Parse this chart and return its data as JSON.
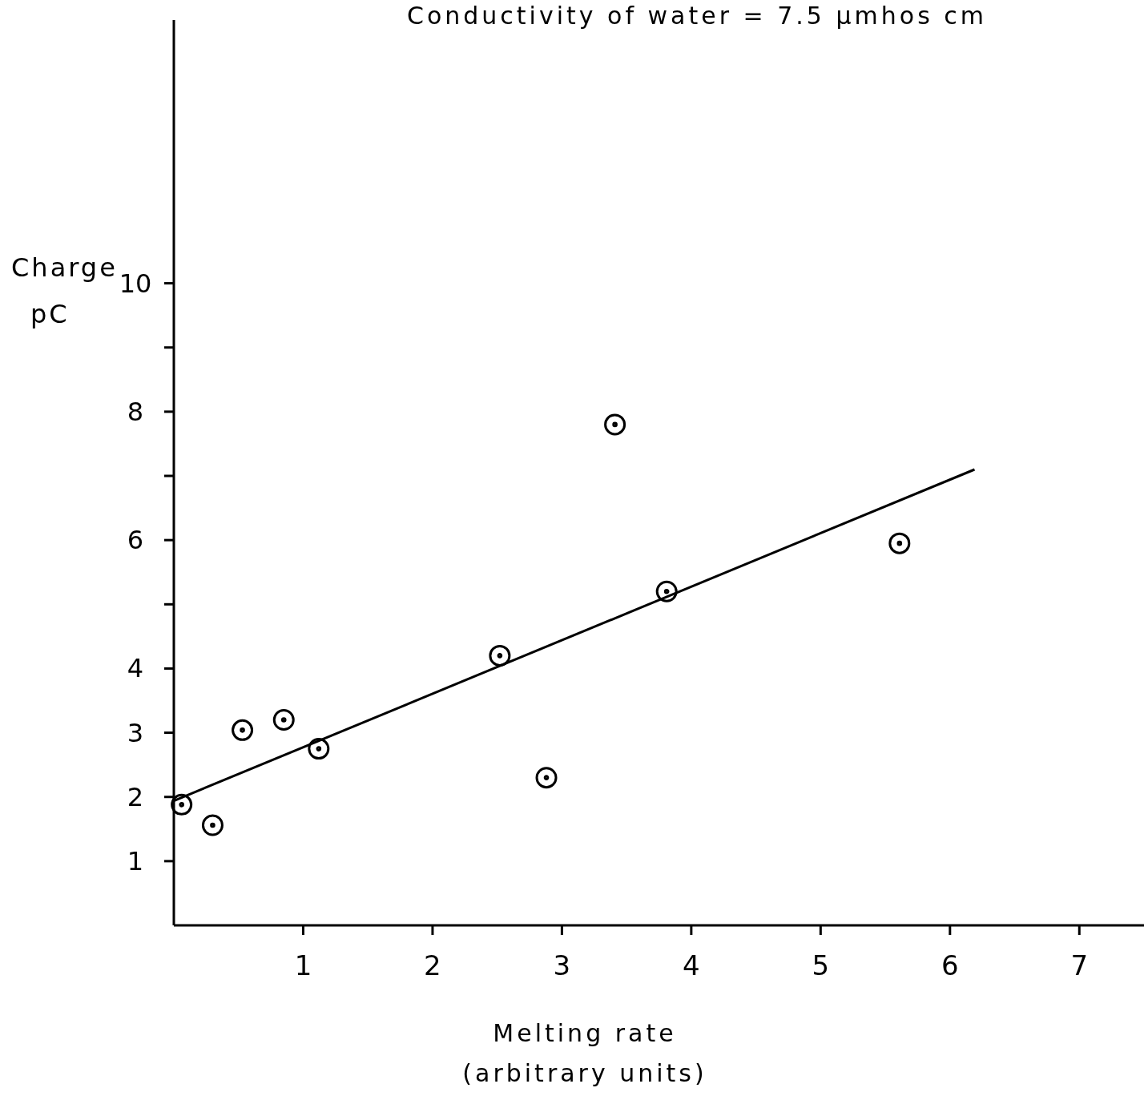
{
  "chart_data": {
    "type": "scatter",
    "title": "Conductivity of water = 7.5 µmhos cm",
    "xlabel": "Melting rate\n(arbitrary units)",
    "ylabel": "Charge\npC",
    "xlim": [
      0,
      7.5
    ],
    "ylim": [
      0,
      14.1
    ],
    "xticks": [
      1,
      2,
      3,
      4,
      5,
      6,
      7
    ],
    "yticks": [
      1,
      2,
      3,
      4,
      {
        "value": 5,
        "label": null
      },
      6,
      {
        "value": 7,
        "label": null
      },
      8,
      {
        "value": 9,
        "label": null
      },
      10
    ],
    "grid": false,
    "series": [
      {
        "color": "#000000",
        "marker": "circle",
        "x": [
          0.06,
          0.3,
          0.53,
          0.85,
          1.12,
          2.52,
          2.88,
          3.41,
          3.81,
          5.61
        ],
        "values": [
          1.88,
          1.56,
          3.04,
          3.2,
          2.75,
          4.2,
          2.3,
          7.8,
          5.2,
          5.95
        ]
      },
      {
        "type": "line",
        "color": "#000000",
        "x": [
          0,
          6.19
        ],
        "values": [
          1.94,
          7.1
        ],
        "marker": "none",
        "line_style": "solid"
      }
    ]
  }
}
